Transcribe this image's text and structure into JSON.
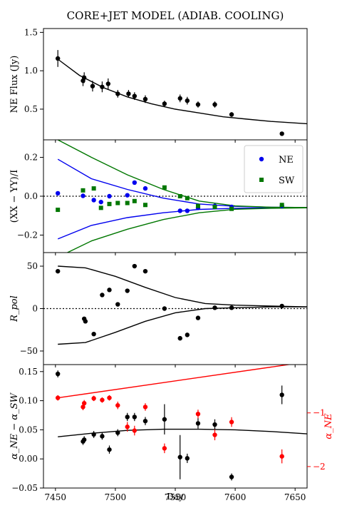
{
  "figure": {
    "title": "CORE+JET MODEL (ADIAB. COOLING)",
    "xlabel": "Day"
  },
  "chart_data": [
    {
      "type": "scatter",
      "panel": "flux",
      "ylabel": "NE Flux (Jy)",
      "xlim": [
        7440,
        7660
      ],
      "ylim": [
        0.1,
        1.55
      ],
      "yticks": [
        0.5,
        1.0,
        1.5
      ],
      "ytick_labels": [
        "0.5",
        "1.0",
        "1.5"
      ],
      "series": [
        {
          "color": "#000000",
          "marker": "circle",
          "x": [
            7452,
            7473,
            7474,
            7481,
            7489,
            7494,
            7502,
            7511,
            7516,
            7525,
            7541,
            7554,
            7560,
            7569,
            7583,
            7597,
            7639
          ],
          "y": [
            1.16,
            0.87,
            0.91,
            0.8,
            0.79,
            0.83,
            0.7,
            0.7,
            0.67,
            0.63,
            0.57,
            0.64,
            0.61,
            0.56,
            0.56,
            0.43,
            0.18
          ],
          "yerr": [
            0.11,
            0.07,
            0.07,
            0.07,
            0.07,
            0.07,
            0.05,
            0.05,
            0.05,
            0.05,
            0.04,
            0.05,
            0.05,
            0.04,
            0.04,
            0.03,
            0.02
          ]
        }
      ],
      "model_curves": [
        {
          "color": "#000000",
          "x": [
            7452,
            7470,
            7490,
            7510,
            7530,
            7550,
            7570,
            7590,
            7610,
            7630,
            7660
          ],
          "y": [
            1.15,
            0.94,
            0.78,
            0.66,
            0.57,
            0.5,
            0.45,
            0.4,
            0.37,
            0.34,
            0.31
          ]
        }
      ]
    },
    {
      "type": "scatter",
      "panel": "polarization",
      "ylabel": "(XX − YY)/I",
      "xlim": [
        7440,
        7660
      ],
      "ylim": [
        -0.29,
        0.29
      ],
      "yticks": [
        -0.2,
        0.0,
        0.2
      ],
      "ytick_labels": [
        "−0.2",
        "0.0",
        "0.2"
      ],
      "reference_line": 0,
      "legend": {
        "position": "top-right",
        "entries": [
          "NE",
          "SW"
        ]
      },
      "series": [
        {
          "name": "NE",
          "color": "#0000ee",
          "marker": "circle",
          "x": [
            7452,
            7473,
            7482,
            7488,
            7495,
            7510,
            7516,
            7525,
            7554,
            7560,
            7569,
            7583,
            7597,
            7639
          ],
          "y": [
            0.015,
            0.002,
            -0.02,
            -0.03,
            0.0,
            0.005,
            0.07,
            0.04,
            -0.075,
            -0.075,
            -0.06,
            -0.05,
            -0.055,
            -0.05
          ]
        },
        {
          "name": "SW",
          "color": "#007700",
          "marker": "square",
          "x": [
            7452,
            7473,
            7482,
            7488,
            7495,
            7502,
            7510,
            7516,
            7525,
            7541,
            7554,
            7560,
            7569,
            7583,
            7597,
            7639
          ],
          "y": [
            -0.07,
            0.03,
            0.04,
            -0.06,
            -0.04,
            -0.035,
            -0.035,
            -0.025,
            -0.045,
            0.045,
            0.0,
            -0.01,
            -0.05,
            -0.055,
            -0.065,
            -0.045
          ]
        }
      ],
      "model_curves": [
        {
          "color": "#0000ee",
          "x": [
            7452,
            7480,
            7510,
            7540,
            7570,
            7600,
            7630,
            7660
          ],
          "y": [
            0.19,
            0.09,
            0.035,
            -0.01,
            -0.04,
            -0.052,
            -0.057,
            -0.058
          ]
        },
        {
          "color": "#0000ee",
          "x": [
            7452,
            7480,
            7510,
            7540,
            7570,
            7600,
            7630,
            7660
          ],
          "y": [
            -0.22,
            -0.15,
            -0.11,
            -0.085,
            -0.068,
            -0.062,
            -0.06,
            -0.06
          ]
        },
        {
          "color": "#007700",
          "x": [
            7452,
            7480,
            7510,
            7540,
            7570,
            7600,
            7630,
            7660
          ],
          "y": [
            0.29,
            0.2,
            0.11,
            0.035,
            -0.025,
            -0.05,
            -0.057,
            -0.058
          ]
        },
        {
          "color": "#007700",
          "x": [
            7460,
            7480,
            7510,
            7540,
            7570,
            7600,
            7630,
            7660
          ],
          "y": [
            -0.29,
            -0.23,
            -0.17,
            -0.12,
            -0.085,
            -0.067,
            -0.062,
            -0.06
          ]
        }
      ]
    },
    {
      "type": "scatter",
      "panel": "rpol",
      "ylabel": "R_pol",
      "xlim": [
        7440,
        7660
      ],
      "ylim": [
        -66,
        66
      ],
      "yticks": [
        -50,
        0,
        50
      ],
      "ytick_labels": [
        "−50",
        "0",
        "50"
      ],
      "reference_line": 0,
      "series": [
        {
          "color": "#000000",
          "marker": "circle",
          "x": [
            7452,
            7474,
            7475,
            7482,
            7489,
            7495,
            7502,
            7510,
            7516,
            7525,
            7541,
            7554,
            7560,
            7569,
            7583,
            7597,
            7639
          ],
          "y": [
            44,
            -12,
            -15,
            -30,
            16,
            22,
            5,
            21,
            50,
            44,
            0,
            -35,
            -31,
            -11,
            1,
            1,
            3
          ]
        }
      ],
      "model_curves": [
        {
          "color": "#000000",
          "x": [
            7452,
            7475,
            7500,
            7525,
            7550,
            7575,
            7600,
            7630,
            7660
          ],
          "y": [
            50,
            48,
            38,
            25,
            13,
            6,
            4,
            3,
            2
          ]
        },
        {
          "color": "#000000",
          "x": [
            7452,
            7475,
            7500,
            7525,
            7550,
            7575,
            7600,
            7630,
            7660
          ],
          "y": [
            -42,
            -40,
            -28,
            -15,
            -5,
            0,
            1,
            2,
            2
          ]
        }
      ]
    },
    {
      "type": "scatter",
      "panel": "spectral_index",
      "ylabel": "α_NE − α_SW",
      "y2label": "α_NE",
      "xlim": [
        7440,
        7660
      ],
      "xticks": [
        7450,
        7500,
        7550,
        7600,
        7650
      ],
      "xtick_labels": [
        "7450",
        "7500",
        "7550",
        "7600",
        "7650"
      ],
      "ylim": [
        -0.05,
        0.162
      ],
      "yticks": [
        -0.05,
        0.0,
        0.05,
        0.1,
        0.15
      ],
      "ytick_labels": [
        "−0.05",
        "0.00",
        "0.05",
        "0.10",
        "0.15"
      ],
      "y2lim": [
        -2.4,
        -0.1
      ],
      "y2ticks": [
        -2,
        -1
      ],
      "y2tick_labels": [
        "−2",
        "−1"
      ],
      "y2color": "#ff0000",
      "series": [
        {
          "axis": "left",
          "color": "#000000",
          "marker": "circle",
          "x": [
            7452,
            7473,
            7474,
            7482,
            7489,
            7495,
            7502,
            7510,
            7516,
            7525,
            7541,
            7554,
            7560,
            7569,
            7583,
            7597,
            7639
          ],
          "y": [
            0.146,
            0.03,
            0.033,
            0.042,
            0.039,
            0.016,
            0.045,
            0.072,
            0.072,
            0.065,
            0.068,
            0.003,
            0.001,
            0.061,
            0.059,
            -0.031,
            0.11
          ],
          "yerr": [
            0.006,
            0.006,
            0.006,
            0.006,
            0.006,
            0.007,
            0.006,
            0.007,
            0.007,
            0.007,
            0.026,
            0.038,
            0.008,
            0.009,
            0.009,
            0.006,
            0.016
          ]
        },
        {
          "axis": "right",
          "color": "#ff0000",
          "marker": "circle",
          "x": [
            7452,
            7473,
            7474,
            7482,
            7489,
            7495,
            7502,
            7510,
            7516,
            7525,
            7541,
            7554,
            7560,
            7569,
            7583,
            7597,
            7639
          ],
          "y": [
            -0.72,
            -0.89,
            -0.82,
            -0.73,
            -0.76,
            -0.72,
            -0.86,
            -1.26,
            -1.33,
            -0.89,
            -1.66,
            -0.05,
            -0.02,
            -1.02,
            -1.41,
            -1.17,
            -1.81
          ],
          "yerr": [
            0.05,
            0.06,
            0.06,
            0.05,
            0.05,
            0.05,
            0.07,
            0.09,
            0.09,
            0.07,
            0.09,
            0.03,
            0.03,
            0.08,
            0.1,
            0.09,
            0.13
          ]
        }
      ],
      "model_curves": [
        {
          "axis": "left",
          "color": "#000000",
          "x": [
            7452,
            7480,
            7510,
            7540,
            7570,
            7600,
            7630,
            7660
          ],
          "y": [
            0.038,
            0.044,
            0.049,
            0.051,
            0.051,
            0.05,
            0.047,
            0.043
          ]
        },
        {
          "axis": "right",
          "color": "#ff0000",
          "x": [
            7452,
            7660
          ],
          "y": [
            -0.72,
            -0.05
          ]
        }
      ]
    }
  ]
}
